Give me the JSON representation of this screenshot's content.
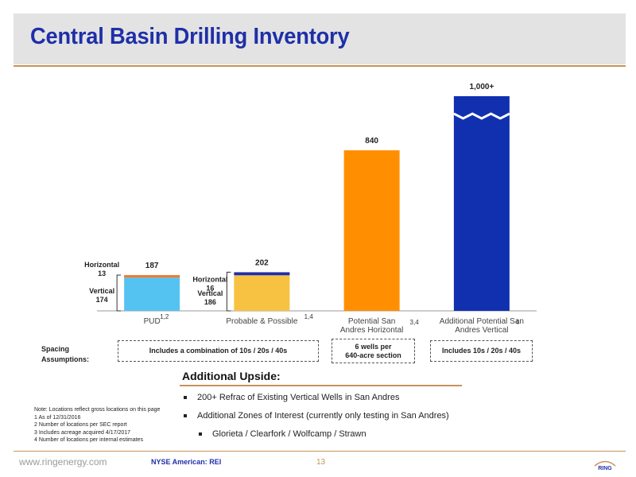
{
  "title": "Central Basin Drilling Inventory",
  "chart_data": {
    "type": "bar",
    "stacked": true,
    "categories": [
      {
        "label": "PUD",
        "sup": "1,2"
      },
      {
        "label": "Probable & Possible",
        "sup": "1,4"
      },
      {
        "label": "Potential San\nAndres Horizontal",
        "sup": "3,4"
      },
      {
        "label": "Additional Potential San\nAndres Vertical",
        "sup": "4"
      }
    ],
    "totals": [
      "187",
      "202",
      "840",
      "1,000+"
    ],
    "bars": [
      {
        "segments": [
          {
            "value": 174,
            "color": "#55c3f2"
          },
          {
            "value": 13,
            "color": "#f07a2a"
          }
        ]
      },
      {
        "segments": [
          {
            "value": 186,
            "color": "#f7c242"
          },
          {
            "value": 16,
            "color": "#1f2fa8"
          }
        ]
      },
      {
        "segments": [
          {
            "value": 840,
            "color": "#ff8f00"
          }
        ]
      },
      {
        "segments": [
          {
            "value": 1000,
            "color": "#1030b0"
          }
        ],
        "break": true
      }
    ],
    "annotations": [
      {
        "bar": 0,
        "horizontal": "Horizontal\n13",
        "vertical": "Vertical\n174"
      },
      {
        "bar": 1,
        "horizontal": "Horizontal\n16",
        "vertical": "Vertical\n186"
      }
    ],
    "ylim": [
      0,
      1050
    ],
    "grid": false,
    "legend": "none"
  },
  "spacing": {
    "label": "Spacing\nAssumptions:",
    "boxes": [
      "Includes a combination of 10s / 20s / 40s",
      "6 wells per\n640-acre section",
      "Includes 10s / 20s / 40s"
    ]
  },
  "upside": {
    "title": "Additional Upside:",
    "items": [
      {
        "text": "200+ Refrac of Existing Vertical  Wells in San Andres",
        "sub": false
      },
      {
        "text": "Additional Zones of Interest (currently only testing in San Andres)",
        "sub": false
      },
      {
        "text": "Glorieta / Clearfork / Wolfcamp / Strawn",
        "sub": true
      }
    ]
  },
  "notes": [
    "Note: Locations reflect gross locations on this page",
    "1 As of 12/31/2016",
    "2 Number of locations per SEC report",
    "3 Includes acreage acquired 4/17/2017",
    "4 Number of locations per internal estimates"
  ],
  "footer": {
    "url": "www.ringenergy.com",
    "ticker": "NYSE American: REI",
    "page": "13",
    "logo_text": "RING"
  },
  "colors": {
    "title": "#1f2fa8",
    "accent": "#c8925a"
  }
}
